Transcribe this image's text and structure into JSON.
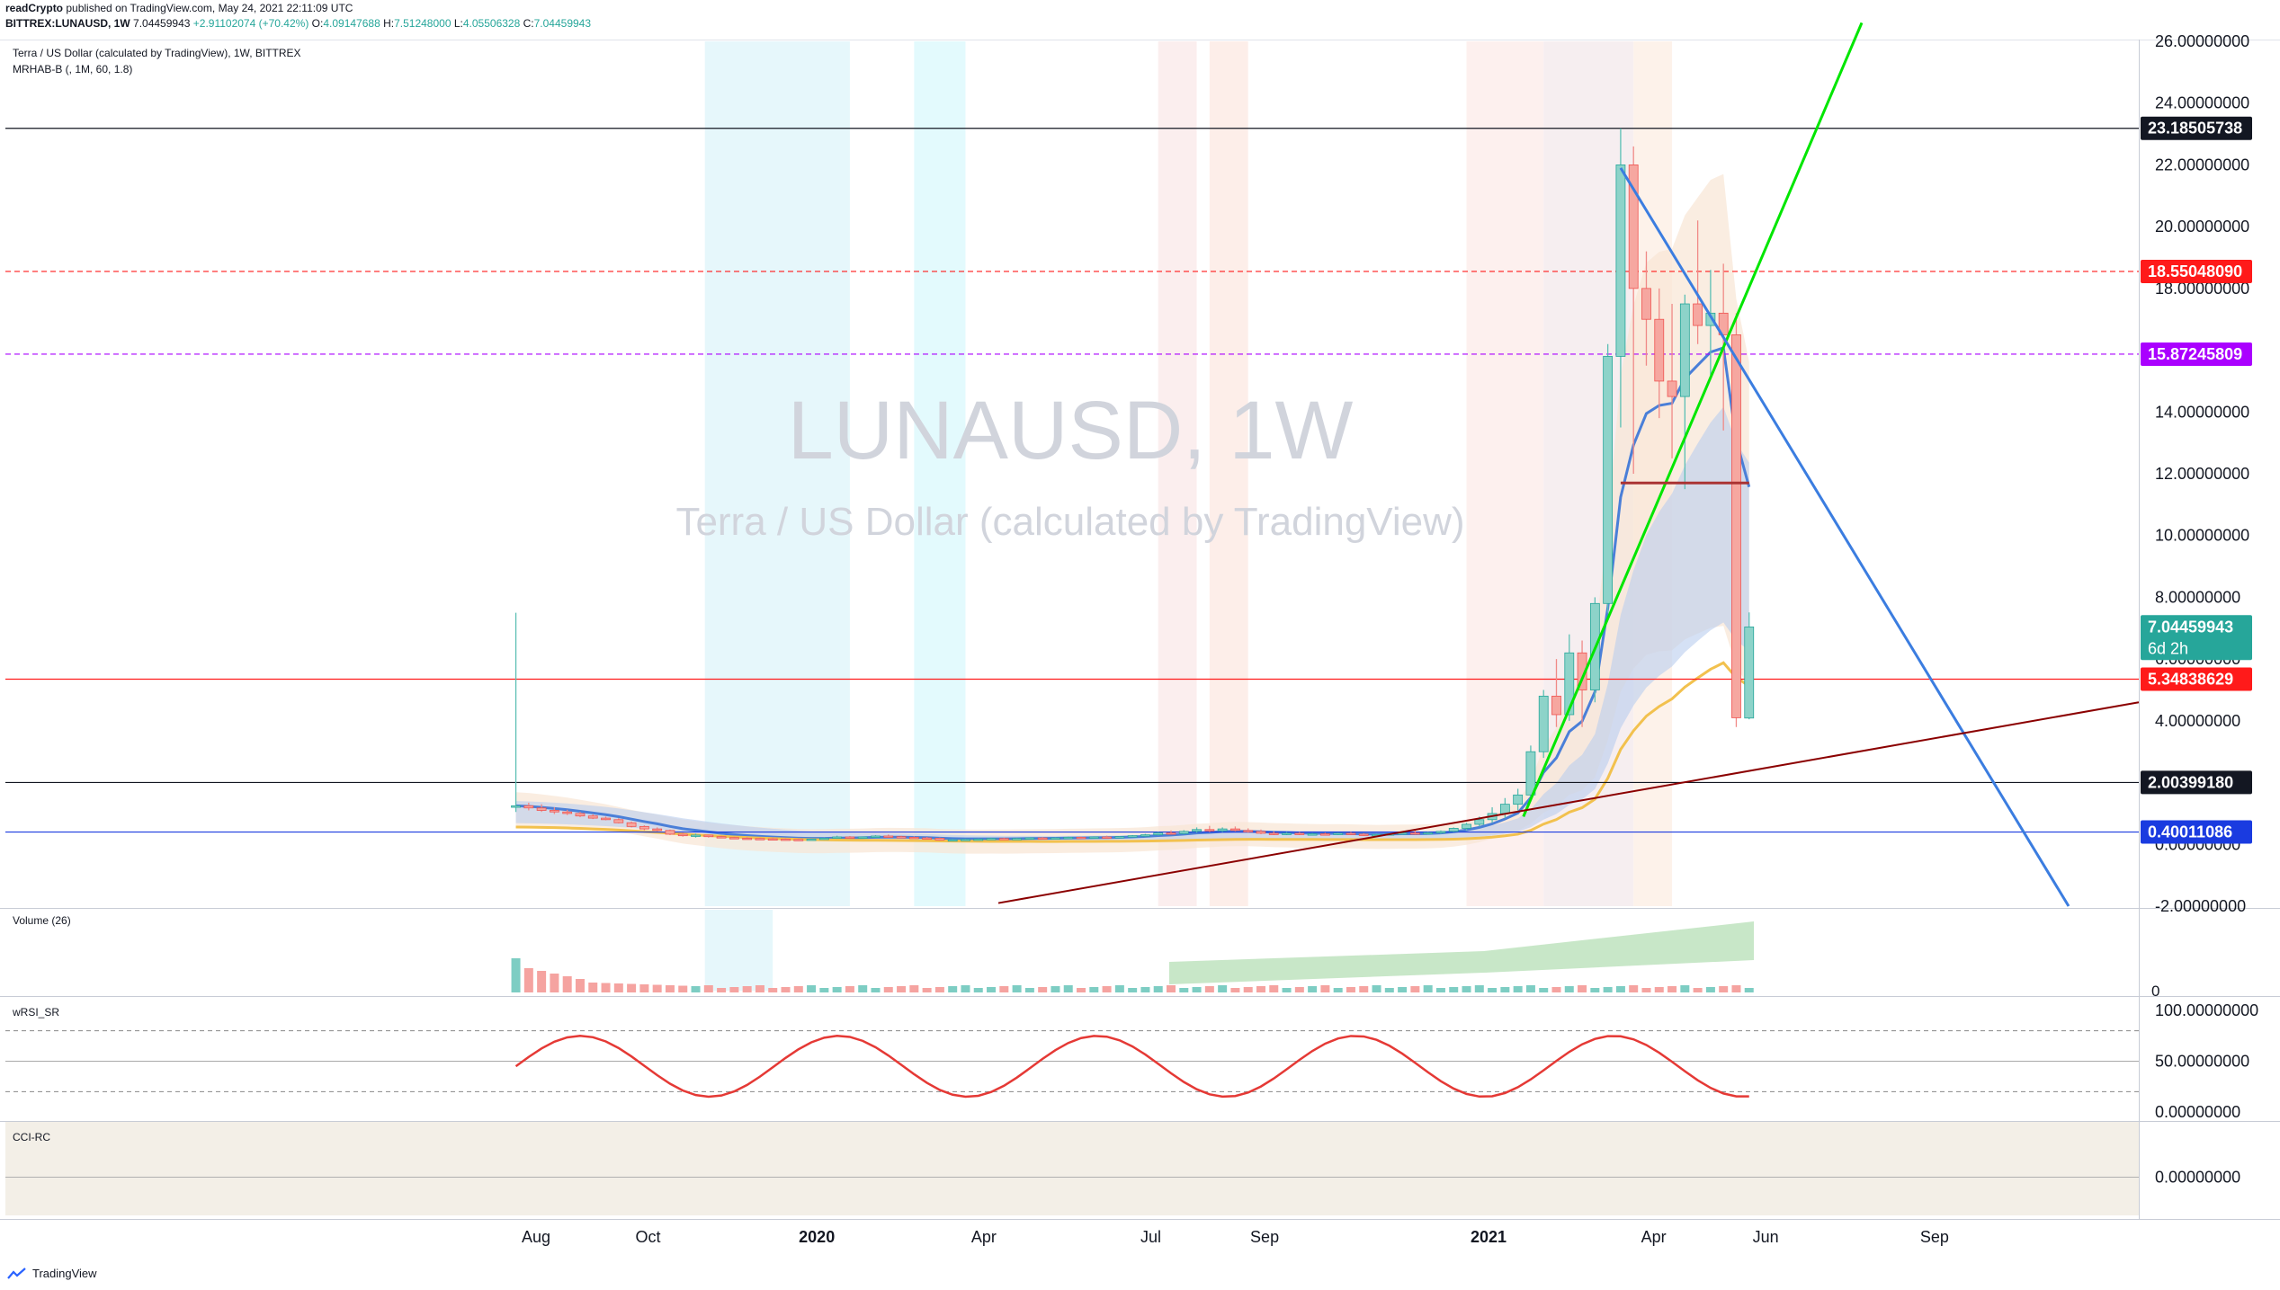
{
  "header": {
    "publisher": "readCrypto",
    "published_text": "published on TradingView.com, May 24, 2021 22:11:09 UTC",
    "symbol_line": "BITTREX:LUNAUSD, 1W",
    "last_value": "7.04459943",
    "change": "+2.91102074 (+70.42%)",
    "open_label": "O:",
    "open": "4.09147688",
    "high_label": "H:",
    "high": "7.51248000",
    "low_label": "L:",
    "low": "4.05506328",
    "close_label": "C:",
    "close": "7.04459943"
  },
  "legend": {
    "title": "Terra / US Dollar (calculated by TradingView), 1W, BITTREX",
    "indicator": "MRHAB-B (, 1M, 60, 1.8)"
  },
  "watermark": {
    "symbol": "LUNAUSD, 1W",
    "name": "Terra / US Dollar (calculated by TradingView)"
  },
  "panes": {
    "volume_label": "Volume (26)",
    "volume_zero": "0",
    "rsi_label": "wRSI_SR",
    "cci_label": "CCI-RC"
  },
  "price_axis": [
    "26.00000000",
    "24.00000000",
    "22.00000000",
    "20.00000000",
    "18.00000000",
    "16.00000000",
    "14.00000000",
    "12.00000000",
    "10.00000000",
    "8.00000000",
    "6.00000000",
    "4.00000000",
    "2.00000000",
    "0.00000000",
    "-2.00000000"
  ],
  "rsi_axis": [
    "100.00000000",
    "50.00000000",
    "0.00000000"
  ],
  "cci_axis": [
    "0.00000000"
  ],
  "price_tags": [
    {
      "value": 23.18505738,
      "label": "23.18505738",
      "color": "#131722"
    },
    {
      "value": 18.5504809,
      "label": "18.55048090",
      "color": "#ff1a1a"
    },
    {
      "value": 15.87245809,
      "label": "15.87245809",
      "color": "#aa00ff"
    },
    {
      "value": 7.04459943,
      "label": "7.04459943",
      "sub": "6d 2h",
      "color": "#26a69a"
    },
    {
      "value": 5.34838629,
      "label": "5.34838629",
      "color": "#ff1a1a"
    },
    {
      "value": 2.0039918,
      "label": "2.00399180",
      "color": "#131722"
    },
    {
      "value": 0.40011086,
      "label": "0.40011086",
      "color": "#1a3be0"
    }
  ],
  "time_axis": [
    "Aug",
    "Oct",
    "2020",
    "Apr",
    "Jul",
    "Sep",
    "2021",
    "Apr",
    "Jun",
    "Sep"
  ],
  "footer": {
    "brand": "TradingView"
  },
  "colors": {
    "up": "#26a69a",
    "down": "#ef5350",
    "trend_green": "#00e600",
    "trend_blue": "#3b7de0",
    "trend_darkred": "#8b0000",
    "hline_red": "#ff1a1a",
    "hline_blue": "#1a3be0",
    "hline_black": "#131722"
  },
  "chart_data": {
    "type": "candlestick",
    "title": "LUNAUSD, 1W",
    "ylim": [
      -2,
      26
    ],
    "x_start": "2019-07-21",
    "x_end": "2021-11-28",
    "candles": [
      [
        "2019-07-21",
        1.2,
        7.5,
        1.05,
        1.25
      ],
      [
        "2019-07-28",
        1.25,
        1.35,
        1.1,
        1.18
      ],
      [
        "2019-08-04",
        1.18,
        1.3,
        1.05,
        1.1
      ],
      [
        "2019-08-11",
        1.1,
        1.2,
        0.98,
        1.05
      ],
      [
        "2019-08-18",
        1.05,
        1.12,
        0.95,
        1.0
      ],
      [
        "2019-08-25",
        1.0,
        1.05,
        0.88,
        0.92
      ],
      [
        "2019-09-01",
        0.92,
        0.98,
        0.82,
        0.85
      ],
      [
        "2019-09-08",
        0.85,
        0.9,
        0.78,
        0.8
      ],
      [
        "2019-09-15",
        0.8,
        0.85,
        0.68,
        0.7
      ],
      [
        "2019-09-22",
        0.7,
        0.74,
        0.55,
        0.58
      ],
      [
        "2019-09-29",
        0.58,
        0.62,
        0.46,
        0.5
      ],
      [
        "2019-10-06",
        0.5,
        0.55,
        0.42,
        0.45
      ],
      [
        "2019-10-13",
        0.45,
        0.48,
        0.3,
        0.33
      ],
      [
        "2019-10-20",
        0.33,
        0.38,
        0.25,
        0.28
      ],
      [
        "2019-10-27",
        0.28,
        0.35,
        0.22,
        0.3
      ],
      [
        "2019-11-03",
        0.3,
        0.32,
        0.22,
        0.25
      ],
      [
        "2019-11-10",
        0.25,
        0.28,
        0.2,
        0.22
      ],
      [
        "2019-11-17",
        0.22,
        0.25,
        0.18,
        0.2
      ],
      [
        "2019-11-24",
        0.2,
        0.24,
        0.17,
        0.19
      ],
      [
        "2019-12-01",
        0.19,
        0.22,
        0.16,
        0.18
      ],
      [
        "2019-12-08",
        0.18,
        0.22,
        0.15,
        0.17
      ],
      [
        "2019-12-15",
        0.17,
        0.2,
        0.14,
        0.16
      ],
      [
        "2019-12-22",
        0.16,
        0.19,
        0.13,
        0.15
      ],
      [
        "2019-12-29",
        0.15,
        0.18,
        0.13,
        0.17
      ],
      [
        "2020-01-05",
        0.17,
        0.22,
        0.15,
        0.2
      ],
      [
        "2020-01-12",
        0.2,
        0.28,
        0.18,
        0.24
      ],
      [
        "2020-01-19",
        0.24,
        0.27,
        0.19,
        0.21
      ],
      [
        "2020-01-26",
        0.21,
        0.26,
        0.19,
        0.24
      ],
      [
        "2020-02-02",
        0.24,
        0.3,
        0.22,
        0.27
      ],
      [
        "2020-02-09",
        0.27,
        0.32,
        0.23,
        0.25
      ],
      [
        "2020-02-16",
        0.25,
        0.28,
        0.21,
        0.23
      ],
      [
        "2020-02-23",
        0.23,
        0.26,
        0.19,
        0.21
      ],
      [
        "2020-03-01",
        0.21,
        0.24,
        0.18,
        0.2
      ],
      [
        "2020-03-08",
        0.2,
        0.22,
        0.12,
        0.14
      ],
      [
        "2020-03-15",
        0.14,
        0.17,
        0.11,
        0.15
      ],
      [
        "2020-03-22",
        0.15,
        0.18,
        0.13,
        0.16
      ],
      [
        "2020-03-29",
        0.16,
        0.19,
        0.14,
        0.17
      ],
      [
        "2020-04-05",
        0.17,
        0.21,
        0.15,
        0.19
      ],
      [
        "2020-04-12",
        0.19,
        0.22,
        0.16,
        0.18
      ],
      [
        "2020-04-19",
        0.18,
        0.21,
        0.15,
        0.19
      ],
      [
        "2020-04-26",
        0.19,
        0.23,
        0.17,
        0.21
      ],
      [
        "2020-05-03",
        0.21,
        0.24,
        0.18,
        0.2
      ],
      [
        "2020-05-10",
        0.2,
        0.23,
        0.17,
        0.21
      ],
      [
        "2020-05-17",
        0.21,
        0.25,
        0.19,
        0.23
      ],
      [
        "2020-05-24",
        0.23,
        0.26,
        0.2,
        0.22
      ],
      [
        "2020-05-31",
        0.22,
        0.26,
        0.2,
        0.24
      ],
      [
        "2020-06-07",
        0.24,
        0.28,
        0.21,
        0.23
      ],
      [
        "2020-06-14",
        0.23,
        0.27,
        0.21,
        0.25
      ],
      [
        "2020-06-21",
        0.25,
        0.3,
        0.23,
        0.28
      ],
      [
        "2020-06-28",
        0.28,
        0.34,
        0.25,
        0.31
      ],
      [
        "2020-07-05",
        0.31,
        0.4,
        0.29,
        0.37
      ],
      [
        "2020-07-12",
        0.37,
        0.45,
        0.32,
        0.35
      ],
      [
        "2020-07-19",
        0.35,
        0.46,
        0.33,
        0.42
      ],
      [
        "2020-07-26",
        0.42,
        0.55,
        0.38,
        0.48
      ],
      [
        "2020-08-02",
        0.48,
        0.6,
        0.4,
        0.44
      ],
      [
        "2020-08-09",
        0.44,
        0.55,
        0.4,
        0.5
      ],
      [
        "2020-08-16",
        0.5,
        0.58,
        0.42,
        0.45
      ],
      [
        "2020-08-23",
        0.45,
        0.52,
        0.38,
        0.42
      ],
      [
        "2020-08-30",
        0.42,
        0.48,
        0.33,
        0.36
      ],
      [
        "2020-09-06",
        0.36,
        0.42,
        0.3,
        0.34
      ],
      [
        "2020-09-13",
        0.34,
        0.4,
        0.3,
        0.36
      ],
      [
        "2020-09-20",
        0.36,
        0.4,
        0.3,
        0.32
      ],
      [
        "2020-09-27",
        0.32,
        0.37,
        0.29,
        0.34
      ],
      [
        "2020-10-04",
        0.34,
        0.38,
        0.3,
        0.33
      ],
      [
        "2020-10-11",
        0.33,
        0.38,
        0.3,
        0.36
      ],
      [
        "2020-10-18",
        0.36,
        0.4,
        0.31,
        0.33
      ],
      [
        "2020-10-25",
        0.33,
        0.36,
        0.28,
        0.3
      ],
      [
        "2020-11-01",
        0.3,
        0.34,
        0.27,
        0.32
      ],
      [
        "2020-11-08",
        0.32,
        0.36,
        0.29,
        0.34
      ],
      [
        "2020-11-15",
        0.34,
        0.4,
        0.31,
        0.37
      ],
      [
        "2020-11-22",
        0.37,
        0.45,
        0.31,
        0.34
      ],
      [
        "2020-11-29",
        0.34,
        0.4,
        0.31,
        0.38
      ],
      [
        "2020-12-06",
        0.38,
        0.45,
        0.34,
        0.42
      ],
      [
        "2020-12-13",
        0.42,
        0.55,
        0.4,
        0.52
      ],
      [
        "2020-12-20",
        0.52,
        0.7,
        0.45,
        0.65
      ],
      [
        "2020-12-27",
        0.65,
        0.9,
        0.58,
        0.8
      ],
      [
        "2021-01-03",
        0.8,
        1.2,
        0.7,
        1.0
      ],
      [
        "2021-01-10",
        1.0,
        1.5,
        0.85,
        1.3
      ],
      [
        "2021-01-17",
        1.3,
        1.8,
        1.1,
        1.6
      ],
      [
        "2021-01-24",
        1.6,
        3.2,
        1.5,
        3.0
      ],
      [
        "2021-01-31",
        3.0,
        5.0,
        2.8,
        4.8
      ],
      [
        "2021-02-07",
        4.8,
        6.0,
        3.8,
        4.2
      ],
      [
        "2021-02-14",
        4.2,
        6.8,
        4.0,
        6.2
      ],
      [
        "2021-02-21",
        6.2,
        6.6,
        3.8,
        5.0
      ],
      [
        "2021-02-28",
        5.0,
        8.0,
        4.6,
        7.8
      ],
      [
        "2021-03-07",
        7.8,
        16.2,
        7.5,
        15.8
      ],
      [
        "2021-03-14",
        15.8,
        23.18,
        13.5,
        22.0
      ],
      [
        "2021-03-21",
        22.0,
        22.6,
        12.0,
        18.0
      ],
      [
        "2021-03-28",
        18.0,
        19.2,
        15.5,
        17.0
      ],
      [
        "2021-04-04",
        17.0,
        18.0,
        13.8,
        15.0
      ],
      [
        "2021-04-11",
        15.0,
        17.5,
        12.5,
        14.5
      ],
      [
        "2021-04-18",
        14.5,
        17.8,
        11.5,
        17.5
      ],
      [
        "2021-04-25",
        17.5,
        20.2,
        16.2,
        16.8
      ],
      [
        "2021-05-02",
        16.8,
        18.6,
        15.2,
        17.2
      ],
      [
        "2021-05-09",
        17.2,
        18.8,
        13.4,
        16.5
      ],
      [
        "2021-05-16",
        16.5,
        17.2,
        3.8,
        4.1
      ],
      [
        "2021-05-23",
        4.09,
        7.51,
        4.05,
        7.04
      ]
    ]
  }
}
